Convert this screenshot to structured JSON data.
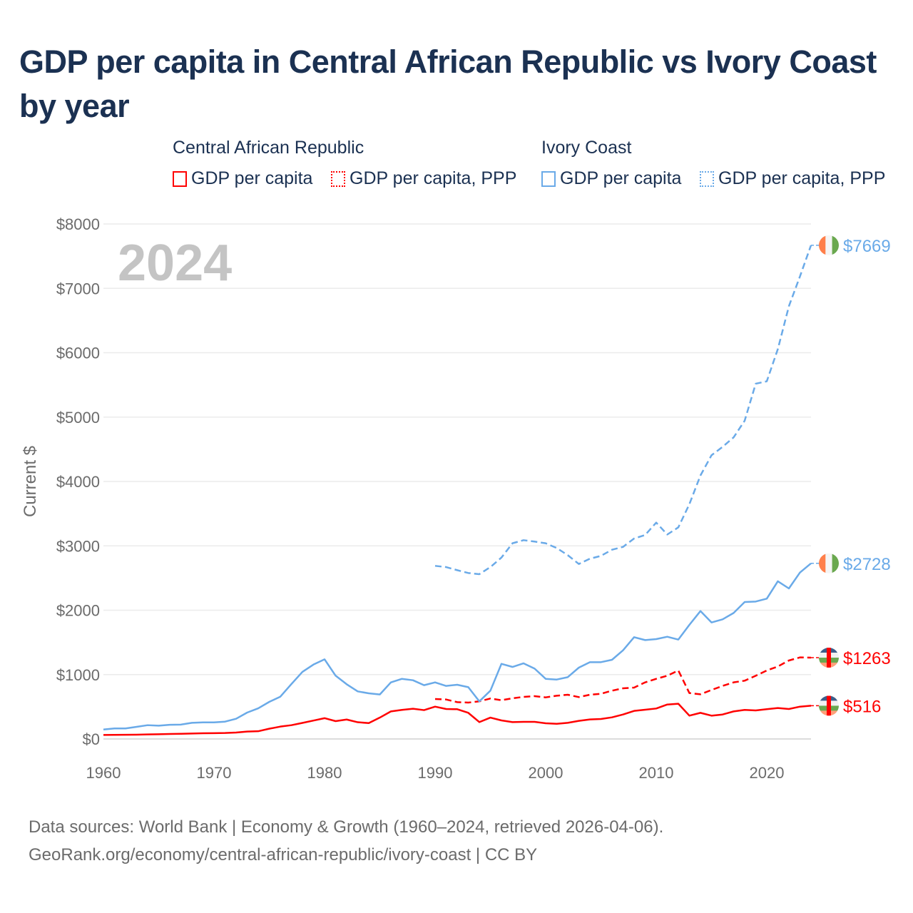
{
  "title": "GDP per capita in Central African Republic vs Ivory Coast by year",
  "legend": {
    "groups": [
      {
        "name": "Central African Republic",
        "items": [
          "GDP per capita",
          "GDP per capita, PPP"
        ],
        "color": "#ff0000"
      },
      {
        "name": "Ivory Coast",
        "items": [
          "GDP per capita",
          "GDP per capita, PPP"
        ],
        "color": "#6aaae8"
      }
    ]
  },
  "year_label": "2024",
  "source": {
    "line1": "Data sources: World Bank | Economy & Growth (1960–2024, retrieved 2026-04-06).",
    "line2": "GeoRank.org/economy/central-african-republic/ivory-coast | CC BY"
  },
  "chart_data": {
    "type": "line",
    "title": "GDP per capita in Central African Republic vs Ivory Coast by year",
    "xlabel": "",
    "ylabel": "Current $",
    "xlim": [
      1960,
      2024
    ],
    "ylim": [
      0,
      8000
    ],
    "xticks": [
      1960,
      1970,
      1980,
      1990,
      2000,
      2010,
      2020
    ],
    "yticks": [
      0,
      1000,
      2000,
      3000,
      4000,
      5000,
      6000,
      7000,
      8000
    ],
    "ytick_labels": [
      "$0",
      "$1000",
      "$2000",
      "$3000",
      "$4000",
      "$5000",
      "$6000",
      "$7000",
      "$8000"
    ],
    "grid": true,
    "series": [
      {
        "name": "Central African Republic GDP per capita",
        "color": "#ff0000",
        "dash": false,
        "start": 1960,
        "end_label": "$516",
        "flag": "car",
        "values": [
          63,
          64,
          65,
          66,
          70,
          74,
          77,
          80,
          85,
          88,
          90,
          93,
          100,
          115,
          120,
          159,
          192,
          214,
          249,
          286,
          323,
          277,
          302,
          260,
          246,
          332,
          428,
          451,
          469,
          448,
          502,
          465,
          462,
          406,
          262,
          332,
          288,
          262,
          266,
          266,
          244,
          236,
          251,
          281,
          303,
          310,
          336,
          380,
          436,
          454,
          473,
          535,
          547,
          362,
          406,
          362,
          380,
          428,
          451,
          443,
          462,
          480,
          465,
          502,
          516
        ]
      },
      {
        "name": "Central African Republic GDP per capita, PPP",
        "color": "#ff0000",
        "dash": true,
        "start": 1990,
        "end_label": "$1263",
        "flag": "car",
        "values": [
          620,
          613,
          572,
          565,
          584,
          628,
          602,
          632,
          654,
          665,
          646,
          672,
          687,
          650,
          687,
          702,
          750,
          787,
          798,
          879,
          934,
          982,
          1064,
          713,
          694,
          761,
          824,
          879,
          905,
          982,
          1064,
          1126,
          1219,
          1267,
          1263
        ]
      },
      {
        "name": "Ivory Coast GDP per capita",
        "color": "#6aaae8",
        "dash": false,
        "start": 1960,
        "end_label": "$2728",
        "flag": "ci",
        "values": [
          147,
          163,
          163,
          188,
          214,
          206,
          220,
          223,
          251,
          258,
          258,
          269,
          314,
          410,
          476,
          576,
          657,
          853,
          1042,
          1156,
          1237,
          983,
          850,
          739,
          709,
          691,
          879,
          934,
          912,
          835,
          879,
          824,
          842,
          805,
          584,
          750,
          1167,
          1119,
          1175,
          1093,
          934,
          923,
          960,
          1108,
          1193,
          1193,
          1230,
          1378,
          1581,
          1536,
          1551,
          1588,
          1544,
          1773,
          1987,
          1810,
          1858,
          1957,
          2127,
          2135,
          2179,
          2449,
          2338,
          2585,
          2728
        ]
      },
      {
        "name": "Ivory Coast GDP per capita, PPP",
        "color": "#6aaae8",
        "dash": true,
        "start": 1990,
        "end_label": "$7669",
        "flag": "ci",
        "values": [
          2689,
          2670,
          2622,
          2578,
          2560,
          2670,
          2818,
          3040,
          3088,
          3066,
          3040,
          2966,
          2855,
          2718,
          2800,
          2844,
          2940,
          2984,
          3114,
          3169,
          3361,
          3176,
          3287,
          3648,
          4093,
          4407,
          4537,
          4685,
          4944,
          5519,
          5556,
          6056,
          6722,
          7185,
          7669
        ]
      }
    ]
  }
}
